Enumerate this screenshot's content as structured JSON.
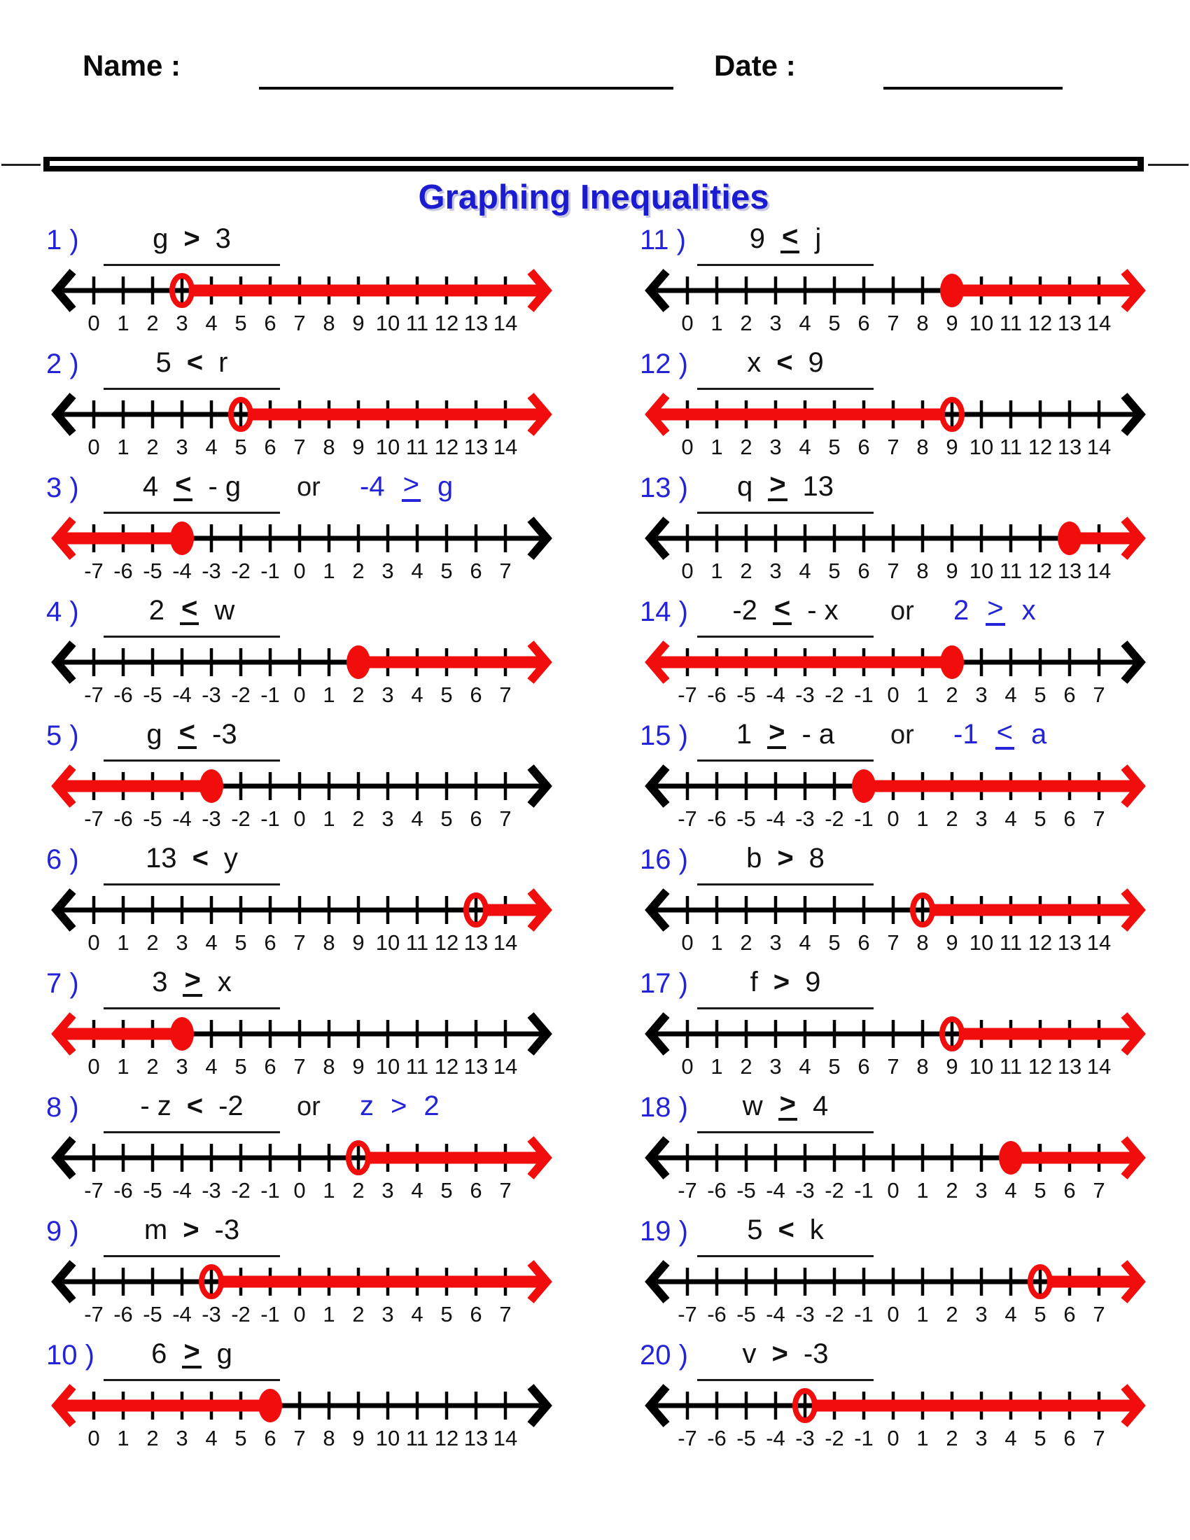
{
  "header": {
    "name_label": "Name :",
    "date_label": "Date :"
  },
  "title": "Graphing Inequalities",
  "colors": {
    "accent_blue": "#2323d8",
    "title_blue": "#1b1bd0",
    "ray_red": "#f20d0d",
    "ink": "#111111"
  },
  "problems": [
    {
      "label": "1 )",
      "lhs": "g",
      "op": ">",
      "rhs": "3",
      "alt": null,
      "ticks": [
        0,
        1,
        2,
        3,
        4,
        5,
        6,
        7,
        8,
        9,
        10,
        11,
        12,
        13,
        14
      ],
      "mark": {
        "value": 3,
        "style": "open",
        "ray": "right"
      }
    },
    {
      "label": "2 )",
      "lhs": "5",
      "op": "<",
      "rhs": "r",
      "alt": null,
      "ticks": [
        0,
        1,
        2,
        3,
        4,
        5,
        6,
        7,
        8,
        9,
        10,
        11,
        12,
        13,
        14
      ],
      "mark": {
        "value": 5,
        "style": "open",
        "ray": "right"
      }
    },
    {
      "label": "3 )",
      "lhs": "4",
      "op": "≤",
      "rhs": "- g",
      "alt": {
        "or": "or",
        "lhs": "-4",
        "op": "≥",
        "rhs": "g"
      },
      "ticks": [
        -7,
        -6,
        -5,
        -4,
        -3,
        -2,
        -1,
        0,
        1,
        2,
        3,
        4,
        5,
        6,
        7
      ],
      "mark": {
        "value": -4,
        "style": "closed",
        "ray": "left"
      }
    },
    {
      "label": "4 )",
      "lhs": "2",
      "op": "≤",
      "rhs": "w",
      "alt": null,
      "ticks": [
        -7,
        -6,
        -5,
        -4,
        -3,
        -2,
        -1,
        0,
        1,
        2,
        3,
        4,
        5,
        6,
        7
      ],
      "mark": {
        "value": 2,
        "style": "closed",
        "ray": "right"
      }
    },
    {
      "label": "5 )",
      "lhs": "g",
      "op": "≤",
      "rhs": "-3",
      "alt": null,
      "ticks": [
        -7,
        -6,
        -5,
        -4,
        -3,
        -2,
        -1,
        0,
        1,
        2,
        3,
        4,
        5,
        6,
        7
      ],
      "mark": {
        "value": -3,
        "style": "closed",
        "ray": "left"
      }
    },
    {
      "label": "6 )",
      "lhs": "13",
      "op": "<",
      "rhs": "y",
      "alt": null,
      "ticks": [
        0,
        1,
        2,
        3,
        4,
        5,
        6,
        7,
        8,
        9,
        10,
        11,
        12,
        13,
        14
      ],
      "mark": {
        "value": 13,
        "style": "open",
        "ray": "right"
      }
    },
    {
      "label": "7 )",
      "lhs": "3",
      "op": "≥",
      "rhs": "x",
      "alt": null,
      "ticks": [
        0,
        1,
        2,
        3,
        4,
        5,
        6,
        7,
        8,
        9,
        10,
        11,
        12,
        13,
        14
      ],
      "mark": {
        "value": 3,
        "style": "closed",
        "ray": "left"
      }
    },
    {
      "label": "8 )",
      "lhs": "- z",
      "op": "<",
      "rhs": "-2",
      "alt": {
        "or": "or",
        "lhs": "z",
        "op": ">",
        "rhs": "2"
      },
      "ticks": [
        -7,
        -6,
        -5,
        -4,
        -3,
        -2,
        -1,
        0,
        1,
        2,
        3,
        4,
        5,
        6,
        7
      ],
      "mark": {
        "value": 2,
        "style": "open",
        "ray": "right"
      }
    },
    {
      "label": "9 )",
      "lhs": "m",
      "op": ">",
      "rhs": "-3",
      "alt": null,
      "ticks": [
        -7,
        -6,
        -5,
        -4,
        -3,
        -2,
        -1,
        0,
        1,
        2,
        3,
        4,
        5,
        6,
        7
      ],
      "mark": {
        "value": -3,
        "style": "open",
        "ray": "right"
      }
    },
    {
      "label": "10 )",
      "lhs": "6",
      "op": "≥",
      "rhs": "g",
      "alt": null,
      "ticks": [
        0,
        1,
        2,
        3,
        4,
        5,
        6,
        7,
        8,
        9,
        10,
        11,
        12,
        13,
        14
      ],
      "mark": {
        "value": 6,
        "style": "closed",
        "ray": "left"
      }
    },
    {
      "label": "11 )",
      "lhs": "9",
      "op": "≤",
      "rhs": "j",
      "alt": null,
      "ticks": [
        0,
        1,
        2,
        3,
        4,
        5,
        6,
        7,
        8,
        9,
        10,
        11,
        12,
        13,
        14
      ],
      "mark": {
        "value": 9,
        "style": "closed",
        "ray": "right"
      }
    },
    {
      "label": "12 )",
      "lhs": "x",
      "op": "<",
      "rhs": "9",
      "alt": null,
      "ticks": [
        0,
        1,
        2,
        3,
        4,
        5,
        6,
        7,
        8,
        9,
        10,
        11,
        12,
        13,
        14
      ],
      "mark": {
        "value": 9,
        "style": "open",
        "ray": "left"
      }
    },
    {
      "label": "13 )",
      "lhs": "q",
      "op": "≥",
      "rhs": "13",
      "alt": null,
      "ticks": [
        0,
        1,
        2,
        3,
        4,
        5,
        6,
        7,
        8,
        9,
        10,
        11,
        12,
        13,
        14
      ],
      "mark": {
        "value": 13,
        "style": "closed",
        "ray": "right"
      }
    },
    {
      "label": "14 )",
      "lhs": "-2",
      "op": "≤",
      "rhs": "- x",
      "alt": {
        "or": "or",
        "lhs": "2",
        "op": "≥",
        "rhs": "x"
      },
      "ticks": [
        -7,
        -6,
        -5,
        -4,
        -3,
        -2,
        -1,
        0,
        1,
        2,
        3,
        4,
        5,
        6,
        7
      ],
      "mark": {
        "value": 2,
        "style": "closed",
        "ray": "left"
      }
    },
    {
      "label": "15 )",
      "lhs": "1",
      "op": "≥",
      "rhs": "- a",
      "alt": {
        "or": "or",
        "lhs": "-1",
        "op": "≤",
        "rhs": "a"
      },
      "ticks": [
        -7,
        -6,
        -5,
        -4,
        -3,
        -2,
        -1,
        0,
        1,
        2,
        3,
        4,
        5,
        6,
        7
      ],
      "mark": {
        "value": -1,
        "style": "closed",
        "ray": "right"
      }
    },
    {
      "label": "16 )",
      "lhs": "b",
      "op": ">",
      "rhs": "8",
      "alt": null,
      "ticks": [
        0,
        1,
        2,
        3,
        4,
        5,
        6,
        7,
        8,
        9,
        10,
        11,
        12,
        13,
        14
      ],
      "mark": {
        "value": 8,
        "style": "open",
        "ray": "right"
      }
    },
    {
      "label": "17 )",
      "lhs": "f",
      "op": ">",
      "rhs": "9",
      "alt": null,
      "ticks": [
        0,
        1,
        2,
        3,
        4,
        5,
        6,
        7,
        8,
        9,
        10,
        11,
        12,
        13,
        14
      ],
      "mark": {
        "value": 9,
        "style": "open",
        "ray": "right"
      }
    },
    {
      "label": "18 )",
      "lhs": "w",
      "op": "≥",
      "rhs": "4",
      "alt": null,
      "ticks": [
        -7,
        -6,
        -5,
        -4,
        -3,
        -2,
        -1,
        0,
        1,
        2,
        3,
        4,
        5,
        6,
        7
      ],
      "mark": {
        "value": 4,
        "style": "closed",
        "ray": "right"
      }
    },
    {
      "label": "19 )",
      "lhs": "5",
      "op": "<",
      "rhs": "k",
      "alt": null,
      "ticks": [
        -7,
        -6,
        -5,
        -4,
        -3,
        -2,
        -1,
        0,
        1,
        2,
        3,
        4,
        5,
        6,
        7
      ],
      "mark": {
        "value": 5,
        "style": "open",
        "ray": "right"
      }
    },
    {
      "label": "20 )",
      "lhs": "v",
      "op": ">",
      "rhs": "-3",
      "alt": null,
      "ticks": [
        -7,
        -6,
        -5,
        -4,
        -3,
        -2,
        -1,
        0,
        1,
        2,
        3,
        4,
        5,
        6,
        7
      ],
      "mark": {
        "value": -3,
        "style": "open",
        "ray": "right"
      }
    }
  ]
}
